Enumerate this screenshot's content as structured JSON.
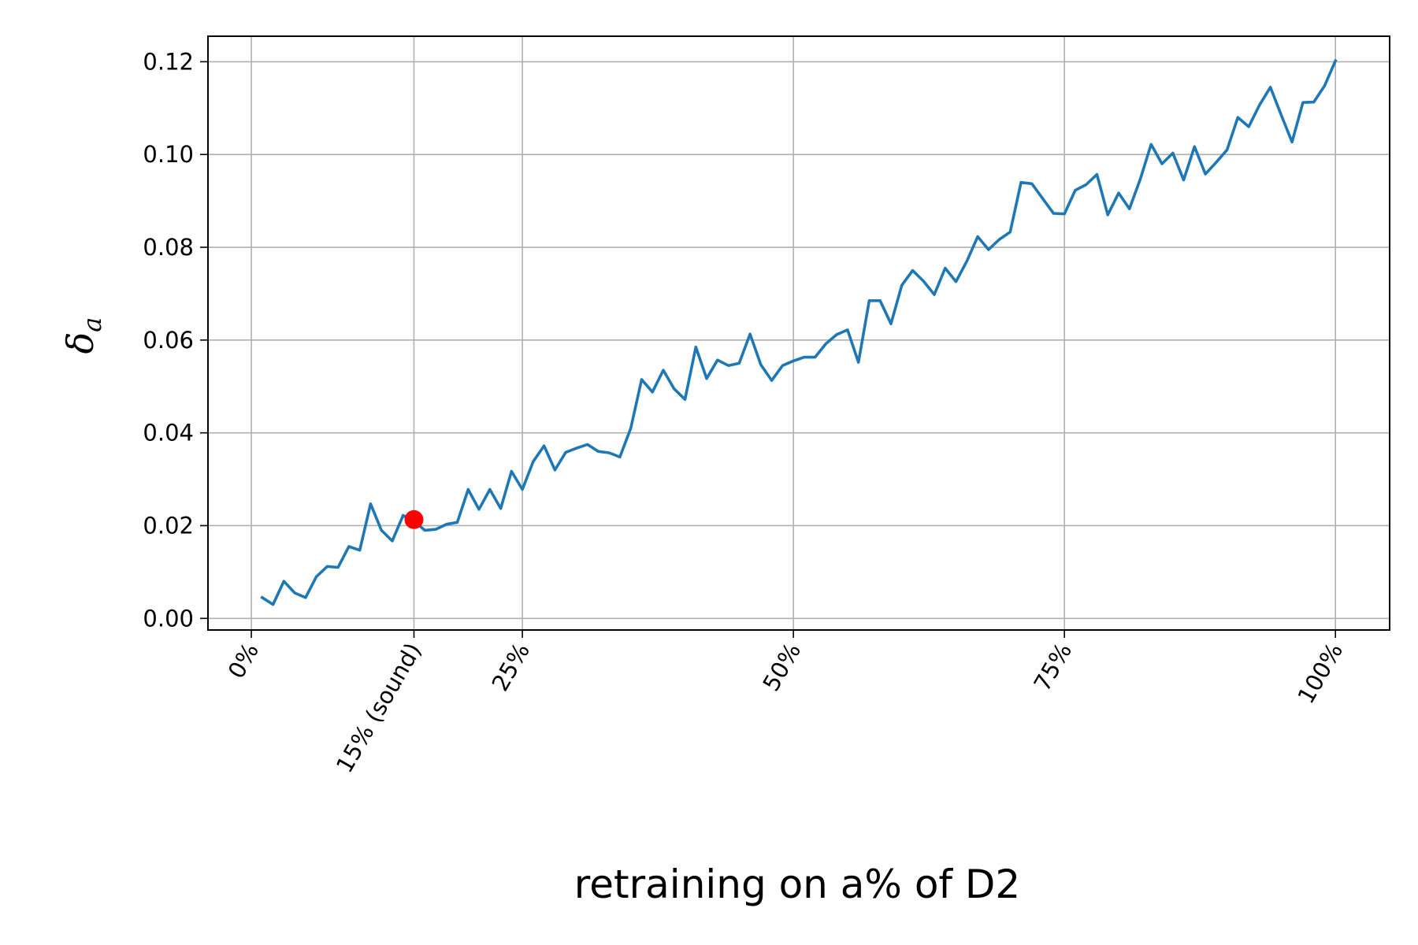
{
  "chart_data": {
    "type": "line",
    "title": "",
    "xlabel": "retraining on a% of D2",
    "ylabel": "δ",
    "ylabel_subscript": "a",
    "xlim": [
      -4,
      105
    ],
    "ylim": [
      -0.0025,
      0.1255
    ],
    "grid": true,
    "x_ticks": [
      {
        "value": 0,
        "label": "0%"
      },
      {
        "value": 15,
        "label": "15% (sound)"
      },
      {
        "value": 25,
        "label": "25%"
      },
      {
        "value": 50,
        "label": "50%"
      },
      {
        "value": 75,
        "label": "75%"
      },
      {
        "value": 100,
        "label": "100%"
      }
    ],
    "y_ticks": [
      {
        "value": 0.0,
        "label": "0.00"
      },
      {
        "value": 0.02,
        "label": "0.02"
      },
      {
        "value": 0.04,
        "label": "0.04"
      },
      {
        "value": 0.06,
        "label": "0.06"
      },
      {
        "value": 0.08,
        "label": "0.08"
      },
      {
        "value": 0.1,
        "label": "0.10"
      },
      {
        "value": 0.12,
        "label": "0.12"
      }
    ],
    "series": [
      {
        "color": "#1f77b4",
        "x": [
          1,
          2,
          3,
          4,
          5,
          6,
          7,
          8,
          9,
          10,
          11,
          12,
          13,
          14,
          15,
          16,
          17,
          18,
          19,
          20,
          21,
          22,
          23,
          24,
          25,
          26,
          27,
          28,
          29,
          30,
          31,
          32,
          33,
          34,
          35,
          36,
          37,
          38,
          39,
          40,
          41,
          42,
          43,
          44,
          45,
          46,
          47,
          48,
          49,
          50,
          51,
          52,
          53,
          54,
          55,
          56,
          57,
          58,
          59,
          60,
          61,
          62,
          63,
          64,
          65,
          66,
          67,
          68,
          69,
          70,
          71,
          72,
          73,
          74,
          75,
          76,
          77,
          78,
          79,
          80,
          81,
          82,
          83,
          84,
          85,
          86,
          87,
          88,
          89,
          90,
          91,
          92,
          93,
          94,
          95,
          96,
          97,
          98,
          99,
          100
        ],
        "values": [
          0.0045,
          0.003,
          0.008,
          0.0055,
          0.0045,
          0.009,
          0.0112,
          0.011,
          0.0155,
          0.0147,
          0.0247,
          0.019,
          0.0167,
          0.0222,
          0.021,
          0.019,
          0.0192,
          0.0203,
          0.0207,
          0.0278,
          0.0235,
          0.0278,
          0.0237,
          0.0317,
          0.0278,
          0.0338,
          0.0372,
          0.032,
          0.0358,
          0.0367,
          0.0375,
          0.036,
          0.0357,
          0.0348,
          0.041,
          0.0515,
          0.0488,
          0.0535,
          0.0495,
          0.0472,
          0.0585,
          0.0517,
          0.0557,
          0.0545,
          0.055,
          0.0613,
          0.0547,
          0.0513,
          0.0545,
          0.0555,
          0.0563,
          0.0563,
          0.0592,
          0.0612,
          0.0622,
          0.0552,
          0.0685,
          0.0685,
          0.0635,
          0.0718,
          0.075,
          0.0727,
          0.0698,
          0.0755,
          0.0726,
          0.077,
          0.0823,
          0.0795,
          0.0817,
          0.0833,
          0.094,
          0.0937,
          0.0905,
          0.0873,
          0.0872,
          0.0923,
          0.0935,
          0.0957,
          0.087,
          0.0917,
          0.0883,
          0.0947,
          0.1022,
          0.098,
          0.1003,
          0.0945,
          0.1017,
          0.0958,
          0.0983,
          0.101,
          0.108,
          0.106,
          0.1107,
          0.1145,
          0.1085,
          0.1027,
          0.1112,
          0.1113,
          0.1148,
          0.1202
        ]
      }
    ],
    "highlight_point": {
      "x": 15,
      "y": 0.0213,
      "color": "#ff0000"
    }
  }
}
